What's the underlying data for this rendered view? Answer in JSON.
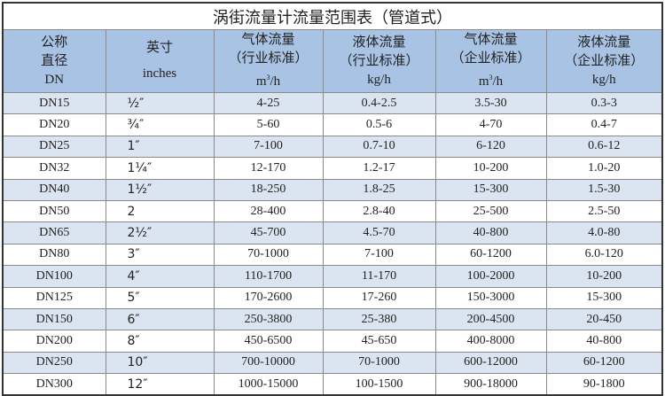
{
  "title": "涡街流量计流量范围表（管道式）",
  "headers": [
    {
      "l1": "公称",
      "l2": "直径",
      "l3": "DN"
    },
    {
      "l1": "英寸",
      "l2": "",
      "l3": "inches"
    },
    {
      "l1": "气体流量",
      "l2": "（行业标准）",
      "l3": "m",
      "sup": "3",
      "l3b": "/h"
    },
    {
      "l1": "液体流量",
      "l2": "（行业标准）",
      "l3": "kg/h"
    },
    {
      "l1": "气体流量",
      "l2": "（企业标准）",
      "l3": "m",
      "sup": "3",
      "l3b": "/h"
    },
    {
      "l1": "液体流量",
      "l2": "（企业标准）",
      "l3": "kg/h"
    }
  ],
  "rows": [
    [
      "DN15",
      "½″",
      "4-25",
      "0.4-2.5",
      "3.5-30",
      "0.3-3"
    ],
    [
      "DN20",
      "¾″",
      "5-60",
      "0.5-6",
      "4-70",
      "0.4-7"
    ],
    [
      "DN25",
      "1″",
      "7-100",
      "0.7-10",
      "6-120",
      "0.6-12"
    ],
    [
      "DN32",
      "1¼″",
      "12-170",
      "1.2-17",
      "10-200",
      "1.0-20"
    ],
    [
      "DN40",
      "1½″",
      "18-250",
      "1.8-25",
      "15-300",
      "1.5-30"
    ],
    [
      "DN50",
      "2",
      "28-400",
      "2.8-40",
      "25-500",
      "2.5-50"
    ],
    [
      "DN65",
      "2½″",
      "45-700",
      "4.5-70",
      "40-800",
      "4.0-80"
    ],
    [
      "DN80",
      "3″",
      "70-1000",
      "7-100",
      "60-1200",
      "6.0-120"
    ],
    [
      "DN100",
      "4″",
      "110-1700",
      "11-170",
      "100-2000",
      "10-200"
    ],
    [
      "DN125",
      "5″",
      "170-2600",
      "17-260",
      "150-3000",
      "15-300"
    ],
    [
      "DN150",
      "6″",
      "250-3800",
      "25-380",
      "200-4500",
      "20-450"
    ],
    [
      "DN200",
      "8″",
      "450-6500",
      "45-650",
      "400-8000",
      "40-800"
    ],
    [
      "DN250",
      "10″",
      "700-10000",
      "70-1000",
      "600-12000",
      "60-1200"
    ],
    [
      "DN300",
      "12″",
      "1000-15000",
      "100-1500",
      "900-18000",
      "90-1800"
    ]
  ]
}
